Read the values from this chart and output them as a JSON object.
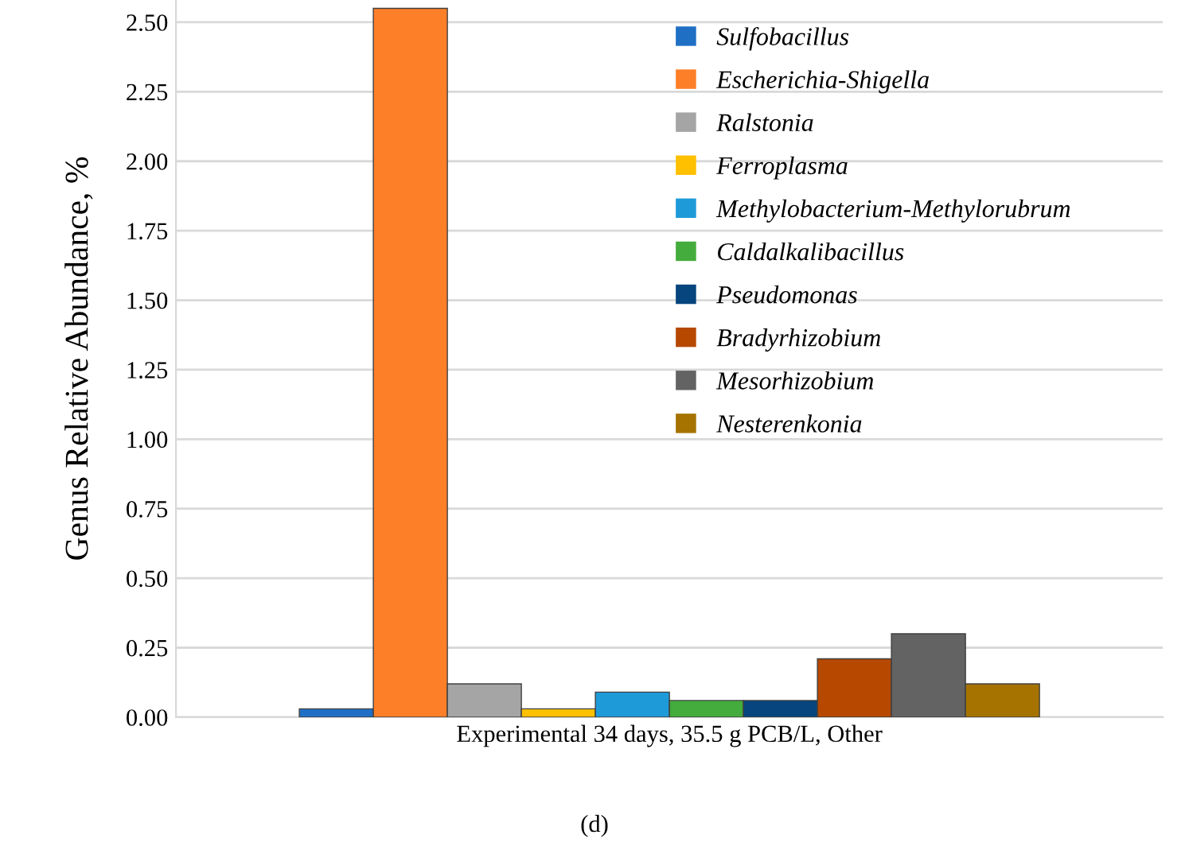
{
  "chart_data": {
    "type": "bar",
    "ylabel": "Genus Relative Abundance, %",
    "categories": [
      "Experimental 34 days, 35.5 g PCB/L, Other"
    ],
    "series": [
      {
        "name": "Sulfobacillus",
        "color": "#1f6fc5",
        "values": [
          0.03
        ]
      },
      {
        "name": "Escherichia-Shigella",
        "color": "#fd7f28",
        "values": [
          2.55
        ]
      },
      {
        "name": "Ralstonia",
        "color": "#a5a5a5",
        "values": [
          0.12
        ]
      },
      {
        "name": "Ferroplasma",
        "color": "#ffc000",
        "values": [
          0.03
        ]
      },
      {
        "name": "Methylobacterium-Methylorubrum",
        "color": "#1e9ad9",
        "values": [
          0.09
        ]
      },
      {
        "name": "Caldalkalibacillus",
        "color": "#43ac3c",
        "values": [
          0.06
        ]
      },
      {
        "name": "Pseudomonas",
        "color": "#06457d",
        "values": [
          0.06
        ]
      },
      {
        "name": "Bradyrhizobium",
        "color": "#b64800",
        "values": [
          0.21
        ]
      },
      {
        "name": "Mesorhizobium",
        "color": "#636363",
        "values": [
          0.3
        ]
      },
      {
        "name": "Nesterenkonia",
        "color": "#a67300",
        "values": [
          0.12
        ]
      }
    ],
    "ylim": [
      0,
      2.58
    ],
    "yticks": [
      {
        "value": 0,
        "label": "0.00"
      },
      {
        "value": 0.25,
        "label": "0.25"
      },
      {
        "value": 0.5,
        "label": "0.50"
      },
      {
        "value": 0.75,
        "label": "0.75"
      },
      {
        "value": 1,
        "label": "1.00"
      },
      {
        "value": 1.25,
        "label": "1.25"
      },
      {
        "value": 1.5,
        "label": "1.50"
      },
      {
        "value": 1.75,
        "label": "1.75"
      },
      {
        "value": 2,
        "label": "2.00"
      },
      {
        "value": 2.25,
        "label": "2.25"
      },
      {
        "value": 2.5,
        "label": "2.50"
      }
    ],
    "grid": "y",
    "legend": "top right",
    "annotations": [
      "(d)"
    ]
  }
}
